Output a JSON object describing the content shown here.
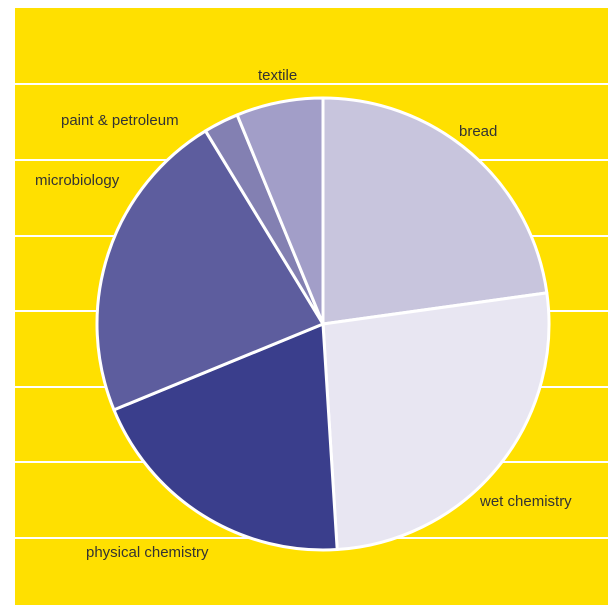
{
  "colors": {
    "background": "#FFE000",
    "gridline": "#FFFFFF",
    "slice_border": "#FFFFFF",
    "label_text": "#333333"
  },
  "chart_data": {
    "type": "pie",
    "title": "",
    "grid": true,
    "start_angle_deg": 0,
    "direction": "clockwise",
    "slices": [
      {
        "label": "bread",
        "value": 22.8,
        "color": "#C8C5DD"
      },
      {
        "label": "wet chemistry",
        "value": 26.2,
        "color": "#E8E6F2"
      },
      {
        "label": "physical chemistry",
        "value": 19.8,
        "color": "#3A3E8C"
      },
      {
        "label": "microbiology",
        "value": 22.5,
        "color": "#5D5D9E"
      },
      {
        "label": "paint & petroleum",
        "value": 2.5,
        "color": "#8380B2"
      },
      {
        "label": "textile",
        "value": 6.2,
        "color": "#A29EC8"
      }
    ]
  }
}
